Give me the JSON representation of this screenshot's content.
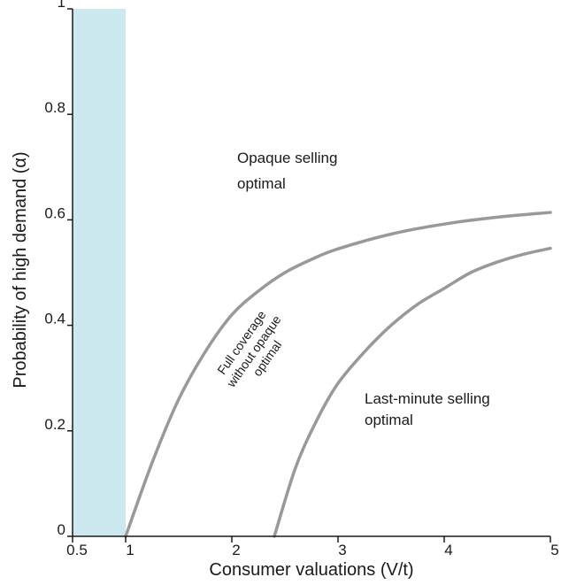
{
  "chart_data": {
    "type": "line",
    "title": "",
    "xlabel": "Consumer valuations (V/t)",
    "ylabel": "Probability of high demand (α)",
    "xlim": [
      0.5,
      5
    ],
    "ylim": [
      0,
      1
    ],
    "x_ticks": [
      {
        "value": 0.5,
        "label": "0.5"
      },
      {
        "value": 1,
        "label": "1"
      },
      {
        "value": 2,
        "label": "2"
      },
      {
        "value": 3,
        "label": "3"
      },
      {
        "value": 4,
        "label": "4"
      },
      {
        "value": 5,
        "label": "5"
      }
    ],
    "y_ticks": [
      {
        "value": 0,
        "label": "0"
      },
      {
        "value": 0.2,
        "label": "0.2"
      },
      {
        "value": 0.4,
        "label": "0.4"
      },
      {
        "value": 0.6,
        "label": "0.6"
      },
      {
        "value": 0.8,
        "label": "0.8"
      },
      {
        "value": 1,
        "label": "1"
      }
    ],
    "shaded_region": {
      "x_from": 0.5,
      "x_to": 1,
      "color": "#cde9f0"
    },
    "series": [
      {
        "color": "#999999",
        "points": [
          [
            1.0,
            0.0
          ],
          [
            1.25,
            0.14
          ],
          [
            1.5,
            0.26
          ],
          [
            1.75,
            0.35
          ],
          [
            2.0,
            0.42
          ],
          [
            2.25,
            0.465
          ],
          [
            2.5,
            0.5
          ],
          [
            2.75,
            0.525
          ],
          [
            3.0,
            0.545
          ],
          [
            3.5,
            0.573
          ],
          [
            4.0,
            0.592
          ],
          [
            4.5,
            0.605
          ],
          [
            5.0,
            0.614
          ]
        ]
      },
      {
        "color": "#999999",
        "points": [
          [
            2.4,
            0.0
          ],
          [
            2.6,
            0.13
          ],
          [
            2.8,
            0.22
          ],
          [
            3.0,
            0.29
          ],
          [
            3.25,
            0.35
          ],
          [
            3.5,
            0.4
          ],
          [
            3.75,
            0.44
          ],
          [
            4.0,
            0.47
          ],
          [
            4.25,
            0.5
          ],
          [
            4.5,
            0.52
          ],
          [
            4.75,
            0.535
          ],
          [
            5.0,
            0.546
          ]
        ]
      }
    ],
    "region_labels": [
      {
        "lines": [
          "Opaque selling",
          "optimal"
        ]
      },
      {
        "lines": [
          "Full coverage",
          "without opaque",
          "optimal"
        ]
      },
      {
        "lines": [
          "Last-minute selling",
          "optimal"
        ]
      }
    ]
  }
}
